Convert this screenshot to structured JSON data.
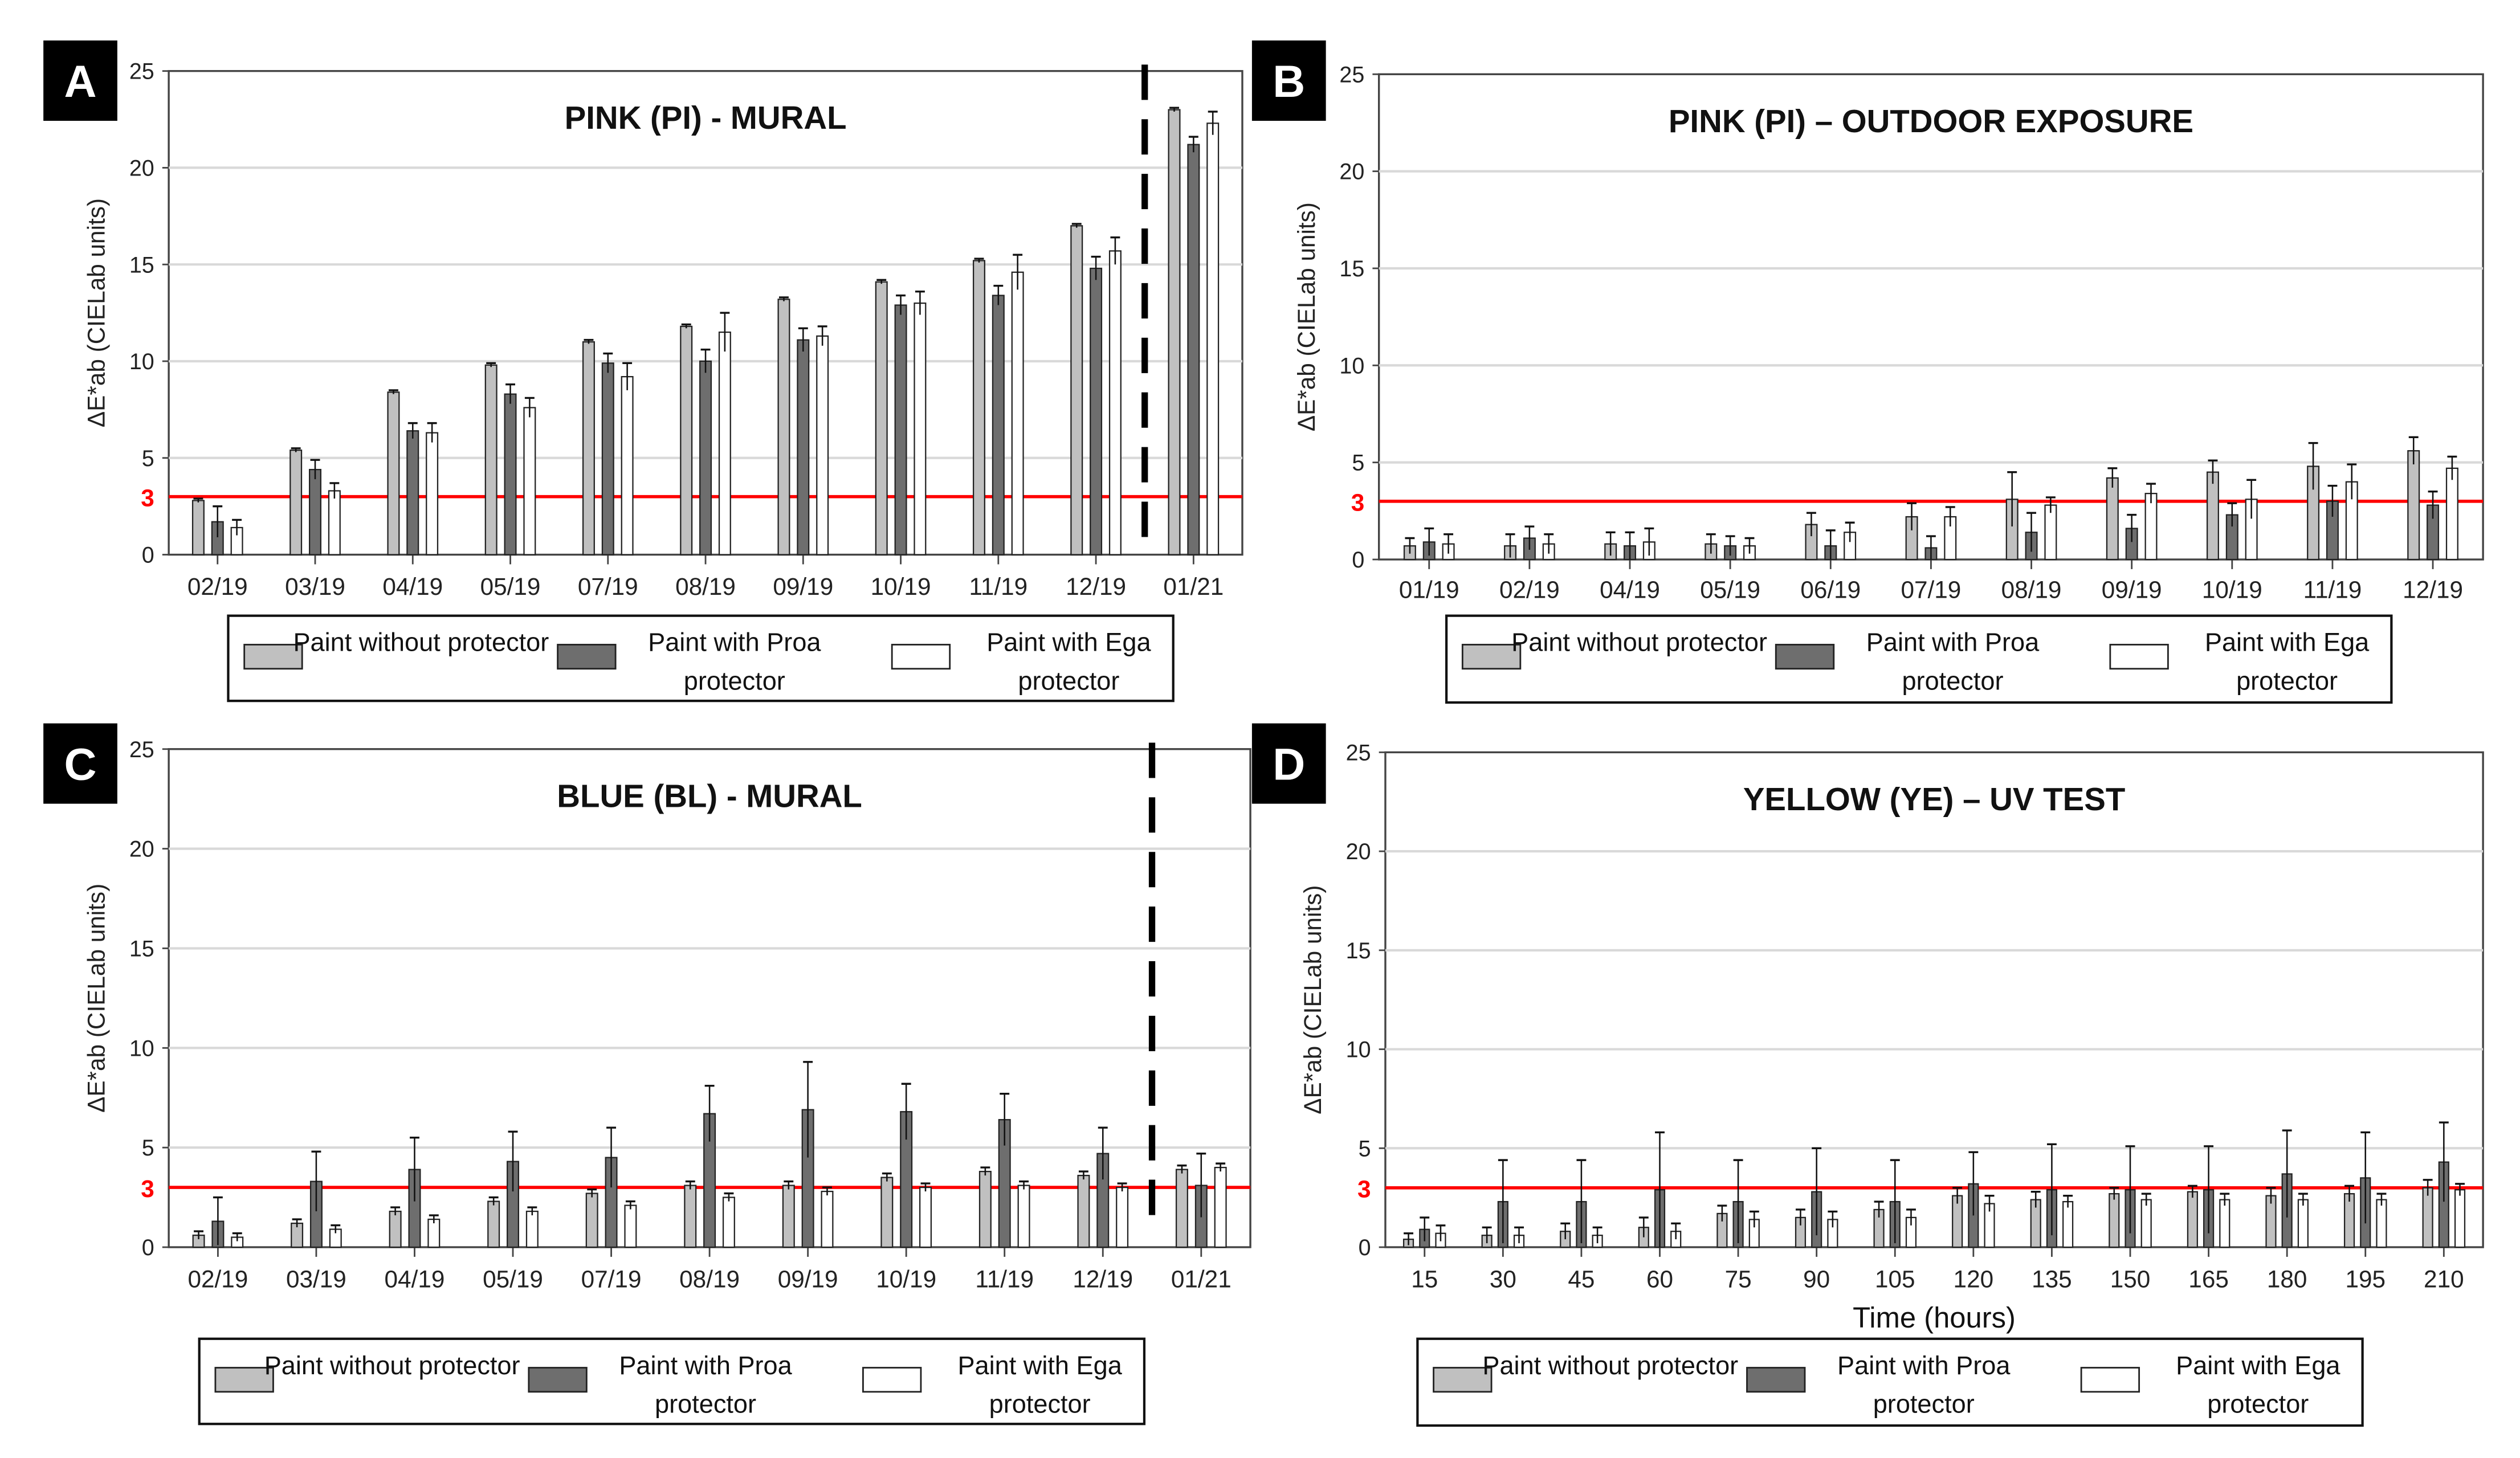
{
  "colors": {
    "without": "#c0c0c0",
    "proa": "#6e6e6e",
    "ega": "#ffffff",
    "threshold": "#ff0000",
    "grid": "#d9d9d9"
  },
  "chart_data": [
    {
      "panel": "A",
      "type": "bar",
      "title": "PINK (PI) - MURAL",
      "ylabel": "ΔE*ab (CIELab units)",
      "xlabel": "",
      "ylim": [
        0,
        25
      ],
      "yticks": [
        "0",
        "5",
        "10",
        "15",
        "20",
        "25"
      ],
      "threshold": 3,
      "threshold_label": "3",
      "dashed_separator_before": "01/21",
      "categories": [
        "02/19",
        "03/19",
        "04/19",
        "05/19",
        "07/19",
        "08/19",
        "09/19",
        "10/19",
        "11/19",
        "12/19",
        "01/21"
      ],
      "series": [
        {
          "name": "Paint without protector",
          "values": [
            2.8,
            5.4,
            8.4,
            9.8,
            11.0,
            11.8,
            13.2,
            14.1,
            15.2,
            17.0,
            23.0
          ],
          "errors": [
            0.1,
            0.1,
            0.1,
            0.1,
            0.1,
            0.1,
            0.1,
            0.1,
            0.1,
            0.1,
            0.1
          ]
        },
        {
          "name": "Paint with Proa protector",
          "values": [
            1.7,
            4.4,
            6.4,
            8.3,
            9.9,
            10.0,
            11.1,
            12.9,
            13.4,
            14.8,
            21.2
          ],
          "errors": [
            0.8,
            0.5,
            0.4,
            0.5,
            0.5,
            0.6,
            0.6,
            0.5,
            0.5,
            0.6,
            0.4
          ]
        },
        {
          "name": "Paint with Ega protector",
          "values": [
            1.4,
            3.3,
            6.3,
            7.6,
            9.2,
            11.5,
            11.3,
            13.0,
            14.6,
            15.7,
            22.3
          ],
          "errors": [
            0.4,
            0.4,
            0.5,
            0.5,
            0.7,
            1.0,
            0.5,
            0.6,
            0.9,
            0.7,
            0.6
          ]
        }
      ],
      "legend": [
        "Paint without protector",
        "Paint with Proa protector",
        "Paint with Ega protector"
      ]
    },
    {
      "panel": "B",
      "type": "bar",
      "title": "PINK (PI) – OUTDOOR EXPOSURE",
      "ylabel": "ΔE*ab (CIELab units)",
      "xlabel": "",
      "ylim": [
        0,
        25
      ],
      "yticks": [
        "0",
        "5",
        "10",
        "15",
        "20",
        "25"
      ],
      "threshold": 3,
      "threshold_label": "3",
      "categories": [
        "01/19",
        "02/19",
        "04/19",
        "05/19",
        "06/19",
        "07/19",
        "08/19",
        "09/19",
        "10/19",
        "11/19",
        "12/19"
      ],
      "series": [
        {
          "name": "Paint without protector",
          "values": [
            0.7,
            0.7,
            0.8,
            0.8,
            1.8,
            2.2,
            3.1,
            4.2,
            4.5,
            4.8,
            5.6
          ],
          "errors": [
            0.4,
            0.6,
            0.6,
            0.5,
            0.6,
            0.7,
            1.4,
            0.5,
            0.6,
            1.2,
            0.7
          ]
        },
        {
          "name": "Paint with Proa protector",
          "values": [
            0.9,
            1.1,
            0.7,
            0.7,
            0.7,
            0.6,
            1.4,
            1.6,
            2.3,
            3.0,
            2.8
          ],
          "errors": [
            0.7,
            0.6,
            0.7,
            0.5,
            0.8,
            0.6,
            1.0,
            0.7,
            0.6,
            0.8,
            0.7
          ]
        },
        {
          "name": "Paint with Ega protector",
          "values": [
            0.8,
            0.8,
            0.9,
            0.7,
            1.4,
            2.2,
            2.8,
            3.4,
            3.1,
            4.0,
            4.7
          ],
          "errors": [
            0.5,
            0.5,
            0.7,
            0.4,
            0.5,
            0.5,
            0.4,
            0.5,
            1.0,
            0.9,
            0.6
          ]
        }
      ],
      "legend": [
        "Paint without protector",
        "Paint with Proa protector",
        "Paint with Ega protector"
      ]
    },
    {
      "panel": "C",
      "type": "bar",
      "title": "BLUE (BL) - MURAL",
      "ylabel": "ΔE*ab (CIELab units)",
      "xlabel": "",
      "ylim": [
        0,
        25
      ],
      "yticks": [
        "0",
        "5",
        "10",
        "15",
        "20",
        "25"
      ],
      "threshold": 3,
      "threshold_label": "3",
      "dashed_separator_before": "01/21",
      "categories": [
        "02/19",
        "03/19",
        "04/19",
        "05/19",
        "07/19",
        "08/19",
        "09/19",
        "10/19",
        "11/19",
        "12/19",
        "01/21"
      ],
      "series": [
        {
          "name": "Paint without protector",
          "values": [
            0.6,
            1.2,
            1.8,
            2.3,
            2.7,
            3.1,
            3.1,
            3.5,
            3.8,
            3.6,
            3.9
          ],
          "errors": [
            0.2,
            0.2,
            0.2,
            0.2,
            0.2,
            0.2,
            0.2,
            0.2,
            0.2,
            0.2,
            0.2
          ]
        },
        {
          "name": "Paint with Proa protector",
          "values": [
            1.3,
            3.3,
            3.9,
            4.3,
            4.5,
            6.7,
            6.9,
            6.8,
            6.4,
            4.7,
            3.1
          ],
          "errors": [
            1.2,
            1.5,
            1.6,
            1.5,
            1.5,
            1.4,
            2.4,
            1.4,
            1.3,
            1.3,
            1.6
          ]
        },
        {
          "name": "Paint with Ega protector",
          "values": [
            0.5,
            0.9,
            1.4,
            1.8,
            2.1,
            2.5,
            2.8,
            3.0,
            3.1,
            3.0,
            4.0
          ],
          "errors": [
            0.2,
            0.2,
            0.2,
            0.2,
            0.2,
            0.2,
            0.2,
            0.2,
            0.2,
            0.2,
            0.2
          ]
        }
      ],
      "legend": [
        "Paint without protector",
        "Paint with Proa protector",
        "Paint with Ega protector"
      ]
    },
    {
      "panel": "D",
      "type": "bar",
      "title": "YELLOW (YE) – UV TEST",
      "ylabel": "ΔE*ab (CIELab units)",
      "xlabel": "Time (hours)",
      "ylim": [
        0,
        25
      ],
      "yticks": [
        "0",
        "5",
        "10",
        "15",
        "20",
        "25"
      ],
      "threshold": 3,
      "threshold_label": "3",
      "categories": [
        "15",
        "30",
        "45",
        "60",
        "75",
        "90",
        "105",
        "120",
        "135",
        "150",
        "165",
        "180",
        "195",
        "210"
      ],
      "series": [
        {
          "name": "Paint without protector",
          "values": [
            0.4,
            0.6,
            0.8,
            1.0,
            1.7,
            1.5,
            1.9,
            2.6,
            2.4,
            2.7,
            2.8,
            2.6,
            2.7,
            3.0
          ],
          "errors": [
            0.3,
            0.4,
            0.4,
            0.5,
            0.4,
            0.4,
            0.4,
            0.4,
            0.4,
            0.3,
            0.3,
            0.4,
            0.4,
            0.4
          ]
        },
        {
          "name": "Paint with Proa protector",
          "values": [
            0.9,
            2.3,
            2.3,
            2.9,
            2.3,
            2.8,
            2.3,
            3.2,
            2.9,
            2.9,
            2.9,
            3.7,
            3.5,
            4.3
          ],
          "errors": [
            0.6,
            2.1,
            2.1,
            2.9,
            2.1,
            2.2,
            2.1,
            1.6,
            2.3,
            2.2,
            2.2,
            2.2,
            2.3,
            2.0
          ]
        },
        {
          "name": "Paint with Ega protector",
          "values": [
            0.7,
            0.6,
            0.6,
            0.8,
            1.4,
            1.4,
            1.5,
            2.2,
            2.3,
            2.4,
            2.4,
            2.4,
            2.4,
            2.9
          ],
          "errors": [
            0.4,
            0.4,
            0.4,
            0.4,
            0.4,
            0.4,
            0.4,
            0.4,
            0.3,
            0.3,
            0.3,
            0.3,
            0.3,
            0.3
          ]
        }
      ],
      "legend": [
        "Paint without protector",
        "Paint with Proa protector",
        "Paint with Ega protector"
      ]
    }
  ]
}
